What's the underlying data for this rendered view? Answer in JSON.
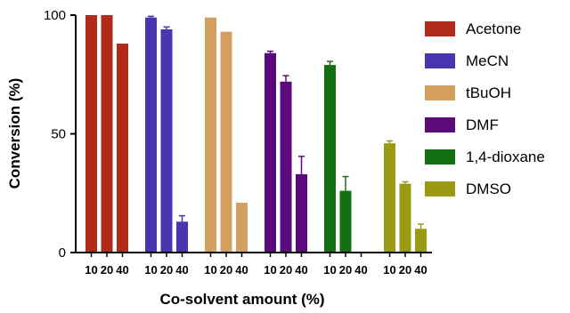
{
  "chart_data": {
    "type": "bar",
    "categories": [
      "10",
      "20",
      "40"
    ],
    "series": [
      {
        "name": "Acetone",
        "values": [
          100,
          100,
          88
        ],
        "errors": [
          0,
          0,
          0
        ],
        "color": "#b22a1a"
      },
      {
        "name": "MeCN",
        "values": [
          99,
          94,
          13
        ],
        "errors": [
          0.5,
          1,
          2.5
        ],
        "color": "#4a34b0"
      },
      {
        "name": "tBuOH",
        "values": [
          99,
          93,
          21
        ],
        "errors": [
          0,
          0,
          0
        ],
        "color": "#d4a060"
      },
      {
        "name": "DMF",
        "values": [
          84,
          72,
          33
        ],
        "errors": [
          0.8,
          2.5,
          7.5
        ],
        "color": "#5a0a7a"
      },
      {
        "name": "1,4-dioxane",
        "values": [
          79,
          26,
          0
        ],
        "errors": [
          1.5,
          6,
          0
        ],
        "color": "#127012"
      },
      {
        "name": "DMSO",
        "values": [
          46,
          29,
          10
        ],
        "errors": [
          1,
          0.8,
          2
        ],
        "color": "#9a9a14"
      }
    ],
    "ylim": [
      0,
      100
    ],
    "yticks": [
      0,
      50,
      100
    ],
    "xlabel": "Co-solvent amount (%)",
    "ylabel": "Conversion (%)",
    "legend_position": "right"
  }
}
